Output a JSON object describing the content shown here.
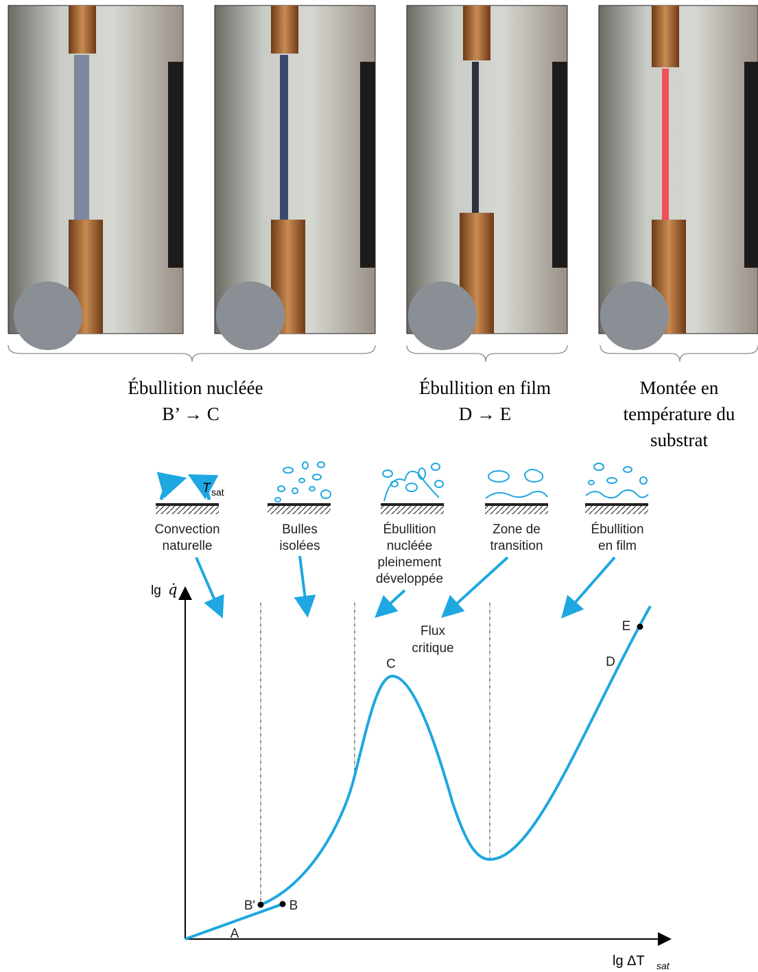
{
  "photo_groups": [
    {
      "lines": [
        "Ébullition nucléée",
        "B’ → C"
      ]
    },
    {
      "lines": [
        "Ébullition en film",
        "D → E"
      ]
    },
    {
      "lines": [
        "Montée en",
        "température du",
        "substrat"
      ]
    }
  ],
  "diagram": {
    "regimes": [
      {
        "lines": [
          "Convection",
          "naturelle"
        ]
      },
      {
        "lines": [
          "Bulles",
          "isolées"
        ]
      },
      {
        "lines": [
          "Ébullition",
          "nucléée",
          "pleinement",
          "développée"
        ]
      },
      {
        "lines": [
          "Zone de",
          "transition"
        ]
      },
      {
        "lines": [
          "Ébullition",
          "en film"
        ]
      }
    ],
    "icon_label": {
      "main": "T",
      "subscript": "sat"
    },
    "y_axis_label": {
      "prefix": "lg",
      "symbol": "q̇"
    },
    "x_axis_label": {
      "main": "lg ΔT",
      "subscript": "sat"
    },
    "critical_flux": [
      "Flux",
      "critique"
    ],
    "points": {
      "A": "A",
      "B": "B",
      "B_prime": "B'",
      "C": "C",
      "D": "D",
      "E": "E"
    }
  }
}
